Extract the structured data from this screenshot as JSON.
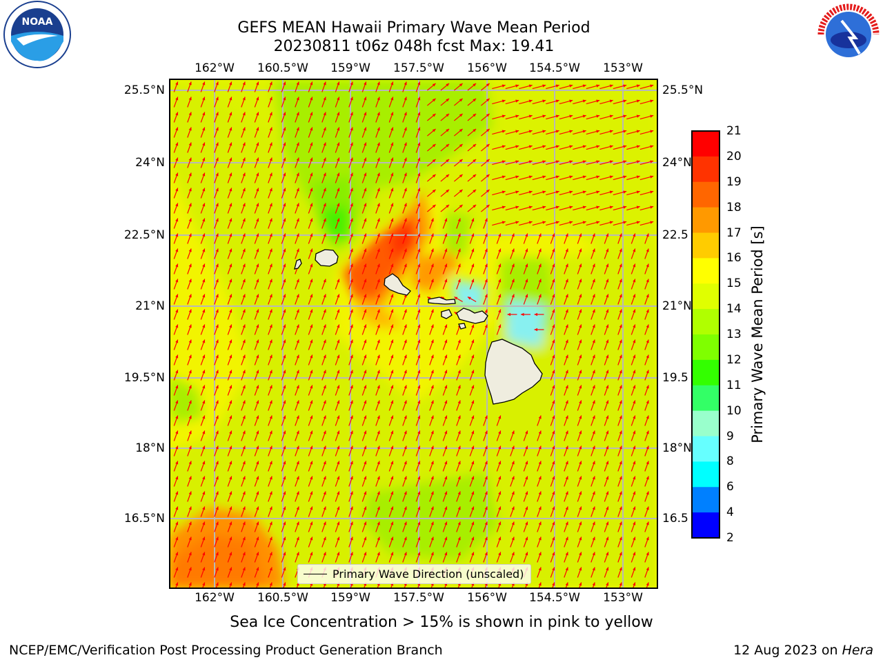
{
  "title": {
    "line1": "GEFS MEAN Hawaii Primary Wave Mean Period",
    "line2": "20230811 t06z 048h fcst   Max: 19.41"
  },
  "map": {
    "lon_labels": [
      "162°W",
      "160.5°W",
      "159°W",
      "157.5°W",
      "156°W",
      "154.5°W",
      "153°W"
    ],
    "lat_labels_left": [
      "25.5°N",
      "24°N",
      "22.5°N",
      "21°N",
      "19.5°N",
      "18°N",
      "16.5°N"
    ],
    "lat_labels_right": [
      "25.5°N",
      "24°N",
      "22.5",
      "21°N",
      "19.5",
      "18°N",
      "16.5"
    ],
    "islands": [
      "Niihau",
      "Kauai",
      "Oahu",
      "Molokai",
      "Lanai",
      "Maui",
      "Kahoolawe",
      "Hawaii"
    ],
    "colors": {
      "ocean_base": "#f4f400",
      "arrow": "#ff0000",
      "land": "#efeddf",
      "grid": "#b8b8b8"
    }
  },
  "legend": {
    "label": "Primary Wave Direction (unscaled)"
  },
  "colorbar": {
    "label": "Primary Wave Mean Period [s]",
    "ticks": [
      "21",
      "20",
      "19",
      "18",
      "17",
      "16",
      "15",
      "14",
      "13",
      "12",
      "11",
      "10",
      "9",
      "8",
      "6",
      "4",
      "2"
    ],
    "colors_top_to_bottom": [
      "#ff0000",
      "#ff3300",
      "#ff6600",
      "#ff9900",
      "#ffcc00",
      "#ffff00",
      "#e0ff00",
      "#b0ff00",
      "#7fff00",
      "#33ff00",
      "#33ff66",
      "#99ffcc",
      "#66ffff",
      "#00ffff",
      "#0080ff",
      "#0000ff"
    ]
  },
  "note": "Sea Ice Concentration > 15% is shown in pink to yellow",
  "footer": {
    "left": "NCEP/EMC/Verification Post Processing Product Generation Branch",
    "date": "12 Aug 2023 on ",
    "machine": "Hera"
  },
  "logos": {
    "left": "NOAA",
    "right": "NATIONAL WEATHER SERVICE"
  }
}
